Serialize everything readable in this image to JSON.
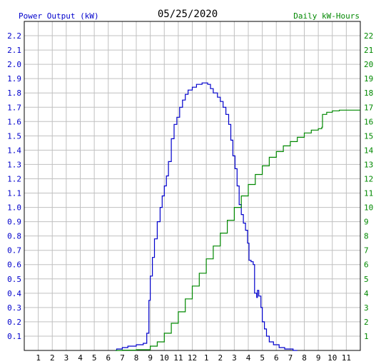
{
  "colors": {
    "background": "#ffffff",
    "grid": "#c0c0c0",
    "frame": "#000000",
    "power": "#0000cc",
    "energy": "#008800",
    "title": "#000000"
  },
  "chart_data": {
    "type": "line",
    "title": "05/25/2020",
    "left_axis": {
      "label": "Power Output (kW)",
      "ylim": [
        0,
        2.3
      ],
      "ticks": [
        "0.1",
        "0.2",
        "0.3",
        "0.4",
        "0.5",
        "0.6",
        "0.7",
        "0.8",
        "0.9",
        "1.0",
        "1.1",
        "1.2",
        "1.3",
        "1.4",
        "1.5",
        "1.6",
        "1.7",
        "1.8",
        "1.9",
        "2.0",
        "2.1",
        "2.2"
      ]
    },
    "right_axis": {
      "label": "Daily kW-Hours",
      "ylim": [
        0,
        23
      ],
      "ticks": [
        "1",
        "2",
        "3",
        "4",
        "5",
        "6",
        "7",
        "8",
        "9",
        "10",
        "11",
        "12",
        "13",
        "14",
        "15",
        "16",
        "17",
        "18",
        "19",
        "20",
        "21",
        "22"
      ]
    },
    "x_axis": {
      "xlim": [
        0,
        24
      ],
      "tick_labels": [
        "1",
        "2",
        "3",
        "4",
        "5",
        "6",
        "7",
        "8",
        "9",
        "10",
        "11",
        "12",
        "1",
        "2",
        "3",
        "4",
        "5",
        "6",
        "7",
        "8",
        "9",
        "10",
        "11"
      ]
    },
    "grid": true,
    "series": [
      {
        "name": "Power Output (kW)",
        "axis": "left",
        "points": [
          [
            6.5,
            0.0
          ],
          [
            6.6,
            0.01
          ],
          [
            7.0,
            0.02
          ],
          [
            7.4,
            0.03
          ],
          [
            8.0,
            0.04
          ],
          [
            8.5,
            0.05
          ],
          [
            8.75,
            0.12
          ],
          [
            8.9,
            0.35
          ],
          [
            9.0,
            0.52
          ],
          [
            9.15,
            0.65
          ],
          [
            9.3,
            0.78
          ],
          [
            9.5,
            0.9
          ],
          [
            9.7,
            1.0
          ],
          [
            9.85,
            1.08
          ],
          [
            10.0,
            1.15
          ],
          [
            10.15,
            1.22
          ],
          [
            10.3,
            1.32
          ],
          [
            10.5,
            1.48
          ],
          [
            10.7,
            1.58
          ],
          [
            10.9,
            1.63
          ],
          [
            11.1,
            1.7
          ],
          [
            11.3,
            1.75
          ],
          [
            11.5,
            1.79
          ],
          [
            11.7,
            1.82
          ],
          [
            12.0,
            1.84
          ],
          [
            12.3,
            1.86
          ],
          [
            12.7,
            1.87
          ],
          [
            13.1,
            1.86
          ],
          [
            13.3,
            1.83
          ],
          [
            13.5,
            1.8
          ],
          [
            13.8,
            1.77
          ],
          [
            14.0,
            1.74
          ],
          [
            14.2,
            1.7
          ],
          [
            14.4,
            1.65
          ],
          [
            14.6,
            1.58
          ],
          [
            14.75,
            1.47
          ],
          [
            14.9,
            1.36
          ],
          [
            15.05,
            1.27
          ],
          [
            15.2,
            1.15
          ],
          [
            15.35,
            1.02
          ],
          [
            15.5,
            0.95
          ],
          [
            15.65,
            0.89
          ],
          [
            15.8,
            0.84
          ],
          [
            15.95,
            0.75
          ],
          [
            16.05,
            0.63
          ],
          [
            16.2,
            0.62
          ],
          [
            16.35,
            0.6
          ],
          [
            16.45,
            0.4
          ],
          [
            16.6,
            0.37
          ],
          [
            16.65,
            0.42
          ],
          [
            16.75,
            0.38
          ],
          [
            16.9,
            0.3
          ],
          [
            17.0,
            0.2
          ],
          [
            17.15,
            0.15
          ],
          [
            17.3,
            0.1
          ],
          [
            17.5,
            0.06
          ],
          [
            17.8,
            0.04
          ],
          [
            18.2,
            0.02
          ],
          [
            18.6,
            0.01
          ],
          [
            19.2,
            0.0
          ],
          [
            19.5,
            0.0
          ]
        ]
      },
      {
        "name": "Daily kW-Hours",
        "axis": "right",
        "points": [
          [
            6.5,
            0.0
          ],
          [
            7.0,
            0.02
          ],
          [
            8.0,
            0.05
          ],
          [
            9.0,
            0.3
          ],
          [
            9.5,
            0.6
          ],
          [
            10.0,
            1.2
          ],
          [
            10.5,
            1.9
          ],
          [
            11.0,
            2.7
          ],
          [
            11.5,
            3.6
          ],
          [
            12.0,
            4.5
          ],
          [
            12.5,
            5.4
          ],
          [
            13.0,
            6.4
          ],
          [
            13.5,
            7.3
          ],
          [
            14.0,
            8.2
          ],
          [
            14.5,
            9.1
          ],
          [
            15.0,
            10.0
          ],
          [
            15.5,
            10.8
          ],
          [
            16.0,
            11.6
          ],
          [
            16.5,
            12.3
          ],
          [
            17.0,
            12.9
          ],
          [
            17.5,
            13.5
          ],
          [
            18.0,
            13.9
          ],
          [
            18.5,
            14.3
          ],
          [
            19.0,
            14.6
          ],
          [
            19.5,
            14.9
          ],
          [
            20.0,
            15.2
          ],
          [
            20.5,
            15.4
          ],
          [
            21.0,
            15.5
          ],
          [
            21.25,
            15.6
          ],
          [
            21.3,
            16.5
          ],
          [
            21.6,
            16.65
          ],
          [
            22.0,
            16.75
          ],
          [
            22.5,
            16.8
          ],
          [
            23.0,
            16.8
          ],
          [
            24.0,
            16.8
          ]
        ]
      }
    ]
  }
}
